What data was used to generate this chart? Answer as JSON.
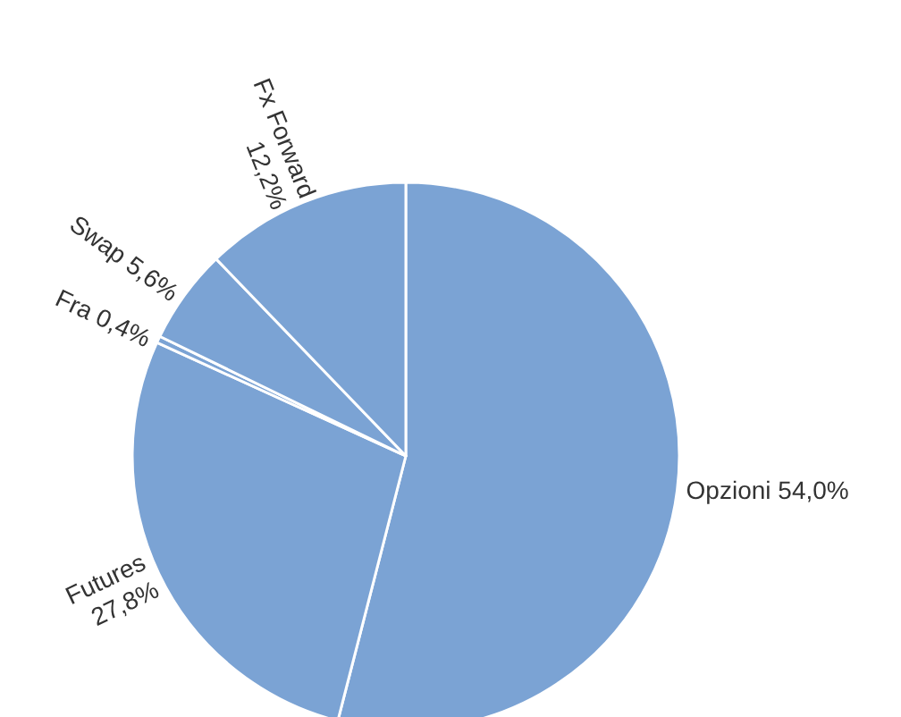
{
  "chart_data": {
    "type": "pie",
    "categories": [
      "Opzioni",
      "Futures",
      "Fra",
      "Swap",
      "Fx Forward"
    ],
    "values": [
      54.0,
      27.8,
      0.4,
      5.6,
      12.2
    ],
    "value_labels": [
      "54,0%",
      "27,8%",
      "0,4%",
      "5,6%",
      "12,2%"
    ],
    "colors": [
      "#7ba3d4",
      "#7ba3d4",
      "#7ba3d4",
      "#7ba3d4",
      "#7ba3d4"
    ],
    "legend": false
  }
}
